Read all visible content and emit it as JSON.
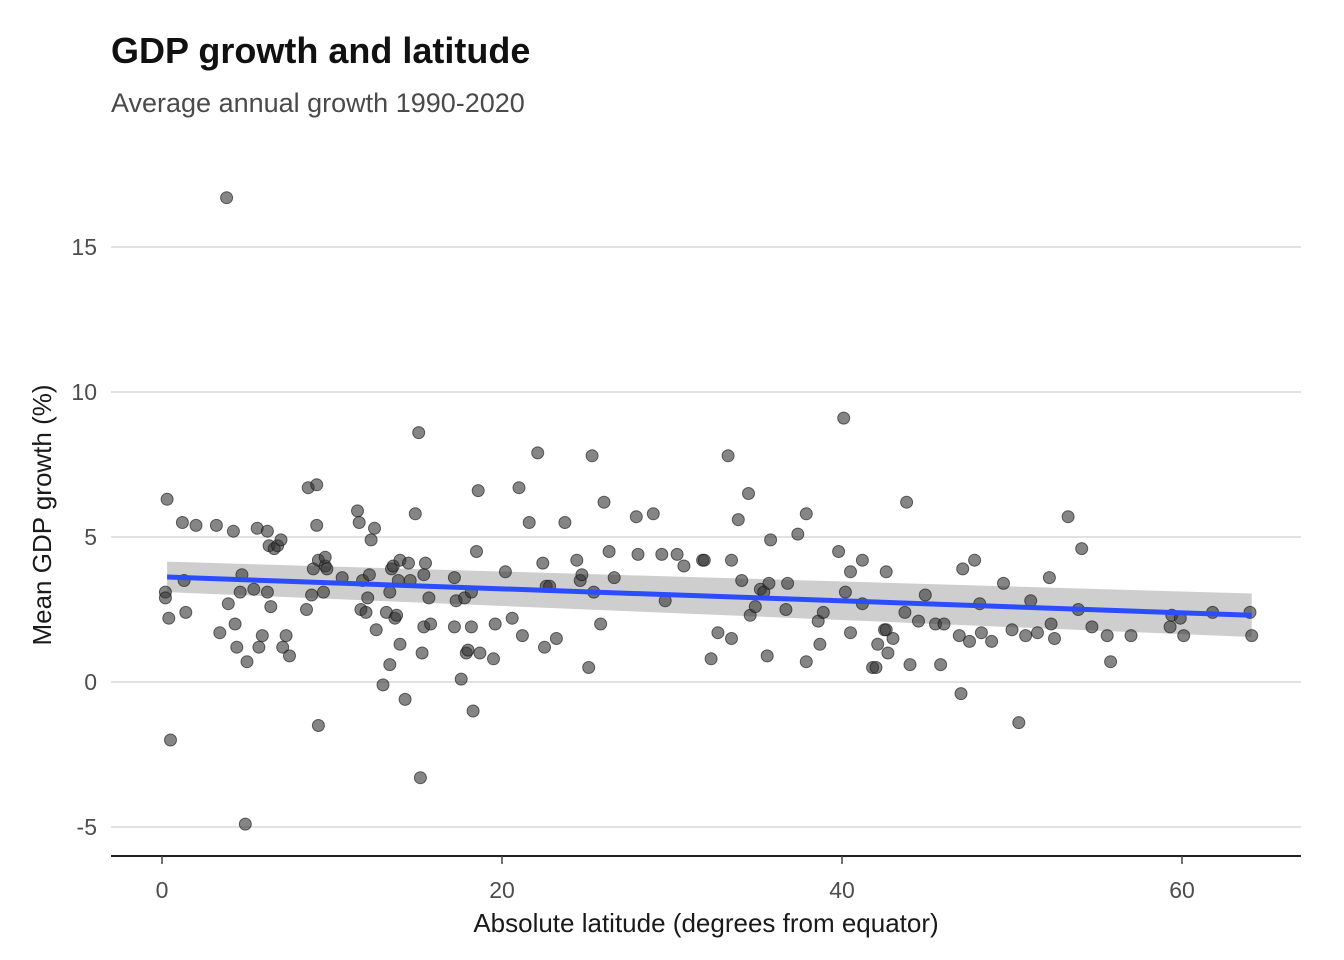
{
  "chart_data": {
    "type": "scatter",
    "title": "GDP growth and latitude",
    "subtitle": "Average annual growth 1990-2020",
    "xlabel": "Absolute latitude (degrees from equator)",
    "ylabel": "Mean GDP growth (%)",
    "xlim": [
      -3,
      67
    ],
    "ylim": [
      -6,
      18
    ],
    "xticks": [
      0,
      20,
      40,
      60
    ],
    "yticks": [
      -5,
      0,
      5,
      10,
      15
    ],
    "grid": "horizontal",
    "colors": {
      "points": "#333333",
      "trend": "#2b4cff",
      "band": "#bdbdbd",
      "grid": "#d9d9d9",
      "axis": "#222222"
    },
    "points": [
      [
        0.2,
        3.1
      ],
      [
        0.2,
        2.9
      ],
      [
        0.3,
        6.3
      ],
      [
        0.4,
        2.2
      ],
      [
        0.5,
        -2.0
      ],
      [
        1.2,
        5.5
      ],
      [
        1.3,
        3.5
      ],
      [
        1.4,
        2.4
      ],
      [
        2.0,
        5.4
      ],
      [
        3.2,
        5.4
      ],
      [
        3.4,
        1.7
      ],
      [
        3.8,
        16.7
      ],
      [
        3.9,
        2.7
      ],
      [
        4.2,
        5.2
      ],
      [
        4.3,
        2.0
      ],
      [
        4.4,
        1.2
      ],
      [
        4.6,
        3.1
      ],
      [
        4.7,
        3.7
      ],
      [
        4.9,
        -4.9
      ],
      [
        5.0,
        0.7
      ],
      [
        5.4,
        3.2
      ],
      [
        5.6,
        5.3
      ],
      [
        5.7,
        1.2
      ],
      [
        5.9,
        1.6
      ],
      [
        6.2,
        5.2
      ],
      [
        6.2,
        3.1
      ],
      [
        6.3,
        4.7
      ],
      [
        6.4,
        2.6
      ],
      [
        6.6,
        4.6
      ],
      [
        6.8,
        4.7
      ],
      [
        7.0,
        4.9
      ],
      [
        7.1,
        1.2
      ],
      [
        7.3,
        1.6
      ],
      [
        7.5,
        0.9
      ],
      [
        8.5,
        2.5
      ],
      [
        8.6,
        6.7
      ],
      [
        8.8,
        3.0
      ],
      [
        8.9,
        3.9
      ],
      [
        9.1,
        5.4
      ],
      [
        9.1,
        6.8
      ],
      [
        9.2,
        4.2
      ],
      [
        9.2,
        -1.5
      ],
      [
        9.5,
        3.1
      ],
      [
        9.6,
        4.0
      ],
      [
        9.6,
        4.3
      ],
      [
        9.7,
        3.9
      ],
      [
        10.6,
        3.6
      ],
      [
        11.5,
        5.9
      ],
      [
        11.6,
        5.5
      ],
      [
        11.7,
        2.5
      ],
      [
        11.8,
        3.5
      ],
      [
        12.0,
        2.4
      ],
      [
        12.1,
        2.9
      ],
      [
        12.2,
        3.7
      ],
      [
        12.3,
        4.9
      ],
      [
        12.5,
        5.3
      ],
      [
        12.6,
        1.8
      ],
      [
        13.0,
        -0.1
      ],
      [
        13.2,
        2.4
      ],
      [
        13.4,
        0.6
      ],
      [
        13.4,
        3.1
      ],
      [
        13.5,
        3.9
      ],
      [
        13.6,
        4.0
      ],
      [
        13.7,
        2.2
      ],
      [
        13.8,
        2.3
      ],
      [
        13.9,
        3.5
      ],
      [
        14.0,
        1.3
      ],
      [
        14.0,
        4.2
      ],
      [
        14.3,
        -0.6
      ],
      [
        14.5,
        4.1
      ],
      [
        14.6,
        3.5
      ],
      [
        14.9,
        5.8
      ],
      [
        15.1,
        8.6
      ],
      [
        15.2,
        -3.3
      ],
      [
        15.3,
        1.0
      ],
      [
        15.4,
        1.9
      ],
      [
        15.4,
        3.7
      ],
      [
        15.5,
        4.1
      ],
      [
        15.7,
        2.9
      ],
      [
        15.8,
        2.0
      ],
      [
        17.2,
        3.6
      ],
      [
        17.2,
        1.9
      ],
      [
        17.3,
        2.8
      ],
      [
        17.6,
        0.1
      ],
      [
        17.8,
        2.9
      ],
      [
        17.9,
        1.0
      ],
      [
        18.0,
        1.1
      ],
      [
        18.2,
        1.9
      ],
      [
        18.2,
        3.1
      ],
      [
        18.3,
        -1.0
      ],
      [
        18.5,
        4.5
      ],
      [
        18.6,
        6.6
      ],
      [
        18.7,
        1.0
      ],
      [
        19.5,
        0.8
      ],
      [
        19.6,
        2.0
      ],
      [
        20.2,
        3.8
      ],
      [
        20.6,
        2.2
      ],
      [
        21.0,
        6.7
      ],
      [
        21.2,
        1.6
      ],
      [
        21.6,
        5.5
      ],
      [
        22.1,
        7.9
      ],
      [
        22.4,
        4.1
      ],
      [
        22.5,
        1.2
      ],
      [
        22.6,
        3.3
      ],
      [
        22.8,
        3.3
      ],
      [
        23.2,
        1.5
      ],
      [
        23.7,
        5.5
      ],
      [
        24.4,
        4.2
      ],
      [
        24.6,
        3.5
      ],
      [
        24.7,
        3.7
      ],
      [
        25.1,
        0.5
      ],
      [
        25.3,
        7.8
      ],
      [
        25.4,
        3.1
      ],
      [
        25.8,
        2.0
      ],
      [
        26.0,
        6.2
      ],
      [
        26.3,
        4.5
      ],
      [
        26.6,
        3.6
      ],
      [
        27.9,
        5.7
      ],
      [
        28.0,
        4.4
      ],
      [
        28.9,
        5.8
      ],
      [
        29.4,
        4.4
      ],
      [
        29.6,
        2.8
      ],
      [
        30.3,
        4.4
      ],
      [
        30.7,
        4.0
      ],
      [
        31.8,
        4.2
      ],
      [
        31.9,
        4.2
      ],
      [
        32.3,
        0.8
      ],
      [
        32.7,
        1.7
      ],
      [
        33.3,
        7.8
      ],
      [
        33.5,
        1.5
      ],
      [
        33.5,
        4.2
      ],
      [
        33.9,
        5.6
      ],
      [
        34.1,
        3.5
      ],
      [
        34.5,
        6.5
      ],
      [
        34.6,
        2.3
      ],
      [
        34.9,
        2.6
      ],
      [
        35.2,
        3.2
      ],
      [
        35.4,
        3.1
      ],
      [
        35.6,
        0.9
      ],
      [
        35.7,
        3.4
      ],
      [
        35.8,
        4.9
      ],
      [
        36.7,
        2.5
      ],
      [
        36.8,
        3.4
      ],
      [
        37.4,
        5.1
      ],
      [
        37.9,
        0.7
      ],
      [
        37.9,
        5.8
      ],
      [
        38.6,
        2.1
      ],
      [
        38.7,
        1.3
      ],
      [
        38.9,
        2.4
      ],
      [
        39.8,
        4.5
      ],
      [
        40.1,
        9.1
      ],
      [
        40.2,
        3.1
      ],
      [
        40.5,
        3.8
      ],
      [
        40.5,
        1.7
      ],
      [
        41.2,
        4.2
      ],
      [
        41.2,
        2.7
      ],
      [
        41.8,
        0.5
      ],
      [
        42.0,
        0.5
      ],
      [
        42.1,
        1.3
      ],
      [
        42.5,
        1.8
      ],
      [
        42.6,
        1.8
      ],
      [
        42.6,
        3.8
      ],
      [
        42.7,
        1.0
      ],
      [
        43.0,
        1.5
      ],
      [
        43.7,
        2.4
      ],
      [
        43.8,
        6.2
      ],
      [
        44.0,
        0.6
      ],
      [
        44.5,
        2.1
      ],
      [
        44.9,
        3.0
      ],
      [
        45.5,
        2.0
      ],
      [
        45.8,
        0.6
      ],
      [
        46.0,
        2.0
      ],
      [
        46.9,
        1.6
      ],
      [
        47.0,
        -0.4
      ],
      [
        47.1,
        3.9
      ],
      [
        47.5,
        1.4
      ],
      [
        47.8,
        4.2
      ],
      [
        48.1,
        2.7
      ],
      [
        48.2,
        1.7
      ],
      [
        48.8,
        1.4
      ],
      [
        49.5,
        3.4
      ],
      [
        50.0,
        1.8
      ],
      [
        50.4,
        -1.4
      ],
      [
        50.8,
        1.6
      ],
      [
        51.1,
        2.8
      ],
      [
        51.5,
        1.7
      ],
      [
        52.2,
        3.6
      ],
      [
        52.3,
        2.0
      ],
      [
        52.5,
        1.5
      ],
      [
        53.3,
        5.7
      ],
      [
        53.9,
        2.5
      ],
      [
        54.1,
        4.6
      ],
      [
        54.7,
        1.9
      ],
      [
        55.6,
        1.6
      ],
      [
        55.8,
        0.7
      ],
      [
        57.0,
        1.6
      ],
      [
        59.3,
        1.9
      ],
      [
        59.4,
        2.3
      ],
      [
        59.9,
        2.2
      ],
      [
        60.1,
        1.6
      ],
      [
        61.8,
        2.4
      ],
      [
        64.0,
        2.4
      ],
      [
        64.1,
        1.6
      ]
    ],
    "trend": {
      "x_start": 0.3,
      "y_start": 3.62,
      "x_end": 64.1,
      "y_end": 2.3
    },
    "confidence_band": {
      "x_start": 0.3,
      "lower_start": 3.1,
      "upper_start": 4.15,
      "x_end": 64.1,
      "lower_end": 1.55,
      "upper_end": 3.05
    }
  }
}
